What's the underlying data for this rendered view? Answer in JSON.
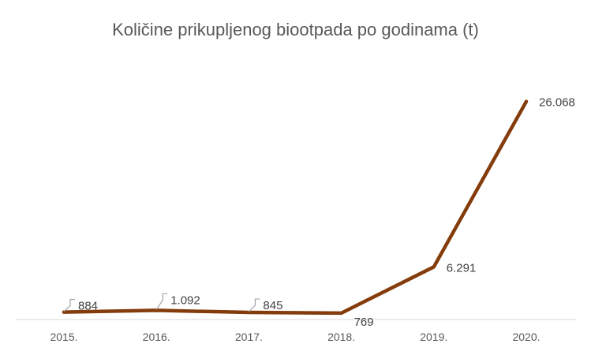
{
  "chart_data": {
    "type": "line",
    "title": "Količine prikupljenog biootpada po godinama (t)",
    "categories": [
      "2015.",
      "2016.",
      "2017.",
      "2018.",
      "2019.",
      "2020."
    ],
    "series": [
      {
        "values": [
          884,
          1092,
          845,
          769,
          6291,
          26068
        ],
        "labels": [
          "884",
          "1.092",
          "845",
          "769",
          "6.291",
          "26.068"
        ],
        "color": "#843C0C"
      }
    ],
    "ylim": [
      0,
      30000
    ],
    "grid": false,
    "legend": "none",
    "axis_line_color": "#d9d9d9"
  }
}
